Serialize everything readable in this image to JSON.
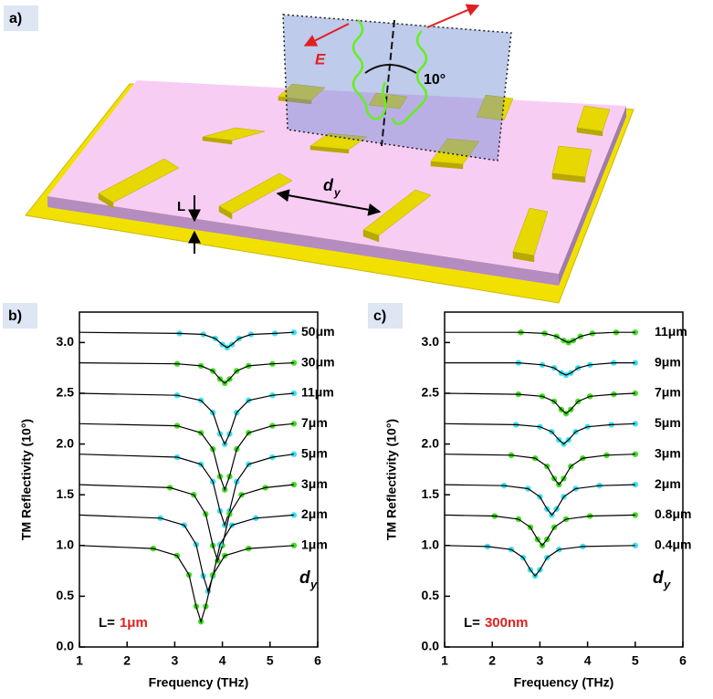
{
  "schematic": {
    "panel_label": "a)",
    "field_label": "E",
    "angle_label": "10°",
    "spacing_label": "d",
    "spacing_subscript": "y",
    "thickness_label": "L"
  },
  "chart_data": [
    {
      "type": "line",
      "panel_label": "b)",
      "x_label": "Frequency (THz)",
      "y_label": "TM Reflectivity (10°)",
      "legend_title": "d",
      "legend_title_subscript": "y",
      "annotation": {
        "prefix": "L=",
        "value": "1μm"
      },
      "xlim": [
        1,
        6
      ],
      "xticks": [
        1,
        2,
        3,
        4,
        5,
        6
      ],
      "ylim": [
        0,
        3.3
      ],
      "yticks": [
        {
          "value": 0,
          "label": "0.0"
        },
        0.5,
        {
          "value": 1,
          "label": "1.0"
        },
        1.5,
        {
          "value": 2,
          "label": "2.0"
        },
        2.5,
        {
          "value": 3,
          "label": "3.0"
        }
      ],
      "fit_color": "#000000",
      "series": [
        {
          "name": "50μm",
          "color": "#3fe0f0",
          "x": [
            1,
            3.1,
            3.6,
            3.85,
            4.0,
            4.1,
            4.2,
            4.35,
            4.6,
            5.1,
            5.5
          ],
          "values": [
            3.1,
            3.09,
            3.08,
            3.04,
            2.98,
            2.95,
            2.98,
            3.04,
            3.08,
            3.09,
            3.1
          ]
        },
        {
          "name": "30μm",
          "color": "#44dd22",
          "x": [
            1,
            3.05,
            3.55,
            3.8,
            3.95,
            4.05,
            4.15,
            4.3,
            4.55,
            5.05,
            5.5
          ],
          "values": [
            2.8,
            2.79,
            2.77,
            2.72,
            2.64,
            2.6,
            2.64,
            2.72,
            2.77,
            2.79,
            2.8
          ]
        },
        {
          "name": "11μm",
          "color": "#3fe0f0",
          "x": [
            1,
            3.05,
            3.55,
            3.8,
            3.95,
            4.05,
            4.15,
            4.3,
            4.55,
            5.05,
            5.5
          ],
          "values": [
            2.5,
            2.48,
            2.43,
            2.31,
            2.1,
            2.0,
            2.1,
            2.31,
            2.43,
            2.48,
            2.5
          ]
        },
        {
          "name": "7μm",
          "color": "#44dd22",
          "x": [
            1,
            3.05,
            3.55,
            3.8,
            3.95,
            4.05,
            4.15,
            4.3,
            4.55,
            5.05,
            5.5
          ],
          "values": [
            2.2,
            2.18,
            2.11,
            1.95,
            1.68,
            1.55,
            1.68,
            1.95,
            2.11,
            2.18,
            2.2
          ]
        },
        {
          "name": "5μm",
          "color": "#3fe0f0",
          "x": [
            1,
            3.05,
            3.55,
            3.8,
            3.95,
            4.05,
            4.15,
            4.3,
            4.55,
            5.05,
            5.5
          ],
          "values": [
            1.9,
            1.87,
            1.8,
            1.63,
            1.34,
            1.2,
            1.34,
            1.63,
            1.8,
            1.87,
            1.9
          ]
        },
        {
          "name": "3μm",
          "color": "#44dd22",
          "x": [
            1,
            2.9,
            3.4,
            3.65,
            3.8,
            3.9,
            4.0,
            4.15,
            4.4,
            4.9,
            5.5
          ],
          "values": [
            1.6,
            1.57,
            1.5,
            1.31,
            1.0,
            0.85,
            1.0,
            1.31,
            1.5,
            1.57,
            1.6
          ]
        },
        {
          "name": "2μm",
          "color": "#3fe0f0",
          "x": [
            1,
            2.7,
            3.2,
            3.45,
            3.6,
            3.7,
            3.8,
            3.95,
            4.2,
            4.7,
            5.5
          ],
          "values": [
            1.3,
            1.27,
            1.2,
            1.01,
            0.7,
            0.55,
            0.7,
            1.01,
            1.2,
            1.27,
            1.3
          ]
        },
        {
          "name": "1μm",
          "color": "#44dd22",
          "x": [
            1,
            2.55,
            3.05,
            3.3,
            3.45,
            3.55,
            3.65,
            3.8,
            4.05,
            4.55,
            5.5
          ],
          "values": [
            1.0,
            0.97,
            0.9,
            0.71,
            0.4,
            0.25,
            0.4,
            0.71,
            0.9,
            0.97,
            1.0
          ]
        }
      ]
    },
    {
      "type": "line",
      "panel_label": "c)",
      "x_label": "Frequency (THz)",
      "y_label": "TM Reflectivity (10°)",
      "legend_title": "d",
      "legend_title_subscript": "y",
      "annotation": {
        "prefix": "L=",
        "value": "300nm"
      },
      "xlim": [
        1,
        6
      ],
      "xticks": [
        1,
        2,
        3,
        4,
        5,
        6
      ],
      "ylim": [
        0,
        3.3
      ],
      "yticks": [
        {
          "value": 0,
          "label": "0.0"
        },
        0.5,
        {
          "value": 1,
          "label": "1.0"
        },
        1.5,
        {
          "value": 2,
          "label": "2.0"
        },
        2.5,
        {
          "value": 3,
          "label": "3.0"
        }
      ],
      "fit_color": "#000000",
      "series": [
        {
          "name": "11μm",
          "color": "#44dd22",
          "x": [
            1,
            2.6,
            3.1,
            3.35,
            3.5,
            3.6,
            3.7,
            3.85,
            4.1,
            4.6,
            5
          ],
          "values": [
            3.1,
            3.1,
            3.09,
            3.06,
            3.02,
            3.0,
            3.02,
            3.06,
            3.09,
            3.1,
            3.1
          ]
        },
        {
          "name": "9μm",
          "color": "#3fe0f0",
          "x": [
            1,
            2.55,
            3.05,
            3.3,
            3.45,
            3.55,
            3.65,
            3.8,
            4.05,
            4.55,
            5
          ],
          "values": [
            2.8,
            2.8,
            2.78,
            2.75,
            2.7,
            2.68,
            2.7,
            2.75,
            2.78,
            2.8,
            2.8
          ]
        },
        {
          "name": "7μm",
          "color": "#44dd22",
          "x": [
            1,
            2.55,
            3.05,
            3.3,
            3.45,
            3.55,
            3.65,
            3.8,
            4.05,
            4.55,
            5
          ],
          "values": [
            2.5,
            2.49,
            2.47,
            2.42,
            2.34,
            2.3,
            2.34,
            2.42,
            2.47,
            2.49,
            2.5
          ]
        },
        {
          "name": "5μm",
          "color": "#3fe0f0",
          "x": [
            1,
            2.5,
            3.0,
            3.25,
            3.4,
            3.5,
            3.6,
            3.75,
            4.0,
            4.5,
            5
          ],
          "values": [
            2.2,
            2.19,
            2.17,
            2.12,
            2.04,
            2.0,
            2.04,
            2.12,
            2.17,
            2.19,
            2.2
          ]
        },
        {
          "name": "3μm",
          "color": "#44dd22",
          "x": [
            1,
            2.4,
            2.9,
            3.15,
            3.3,
            3.4,
            3.5,
            3.65,
            3.9,
            4.4,
            5
          ],
          "values": [
            1.9,
            1.89,
            1.86,
            1.78,
            1.66,
            1.6,
            1.66,
            1.78,
            1.86,
            1.89,
            1.9
          ]
        },
        {
          "name": "2μm",
          "color": "#3fe0f0",
          "x": [
            1,
            2.25,
            2.75,
            3.0,
            3.15,
            3.25,
            3.35,
            3.5,
            3.75,
            4.25,
            5
          ],
          "values": [
            1.6,
            1.59,
            1.56,
            1.48,
            1.36,
            1.3,
            1.36,
            1.48,
            1.56,
            1.59,
            1.6
          ]
        },
        {
          "name": "0.8μm",
          "color": "#44dd22",
          "x": [
            1,
            2.05,
            2.55,
            2.8,
            2.95,
            3.05,
            3.15,
            3.3,
            3.55,
            4.05,
            5
          ],
          "values": [
            1.3,
            1.29,
            1.26,
            1.18,
            1.06,
            1.0,
            1.06,
            1.18,
            1.26,
            1.29,
            1.3
          ]
        },
        {
          "name": "0.4μm",
          "color": "#3fe0f0",
          "x": [
            1,
            1.9,
            2.4,
            2.65,
            2.8,
            2.9,
            3.0,
            3.15,
            3.4,
            3.9,
            5
          ],
          "values": [
            1.0,
            0.99,
            0.96,
            0.88,
            0.76,
            0.7,
            0.76,
            0.88,
            0.96,
            0.99,
            1.0
          ]
        }
      ]
    }
  ]
}
